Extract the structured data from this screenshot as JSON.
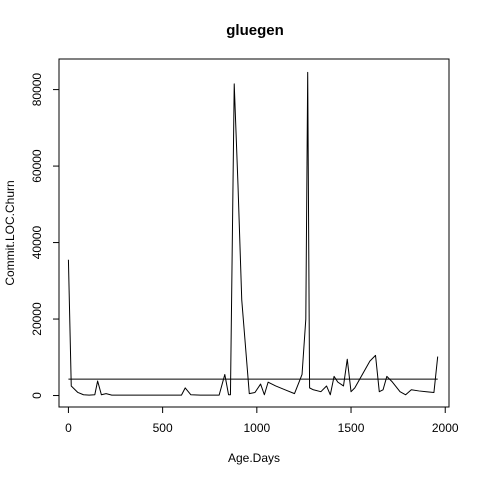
{
  "chart_data": {
    "type": "line",
    "title": "gluegen",
    "xlabel": "Age.Days",
    "ylabel": "Commit.LOC.Churn",
    "xlim": [
      -50,
      2020
    ],
    "ylim": [
      -3000,
      88000
    ],
    "x_ticks": [
      0,
      500,
      1000,
      1500,
      2000
    ],
    "x_tick_labels": [
      "0",
      "500",
      "1000",
      "1500",
      "2000"
    ],
    "y_ticks": [
      0,
      20000,
      40000,
      60000,
      80000
    ],
    "y_tick_labels": [
      "0",
      "20000",
      "40000",
      "60000",
      "80000"
    ],
    "grid": false,
    "series": [
      {
        "x": [
          0,
          15,
          50,
          80,
          110,
          140,
          155,
          175,
          200,
          230,
          260,
          300,
          350,
          400,
          450,
          500,
          550,
          600,
          620,
          650,
          700,
          750,
          800,
          830,
          850,
          860,
          880,
          900,
          920,
          960,
          990,
          1020,
          1040,
          1060,
          1100,
          1150,
          1200,
          1240,
          1260,
          1270,
          1280,
          1300,
          1340,
          1370,
          1390,
          1410,
          1430,
          1460,
          1480,
          1500,
          1520,
          1560,
          1600,
          1630,
          1650,
          1670,
          1690,
          1720,
          1760,
          1790,
          1820,
          1860,
          1900,
          1940,
          1960
        ],
        "y": [
          35500,
          2500,
          800,
          200,
          100,
          200,
          3800,
          200,
          500,
          100,
          100,
          100,
          100,
          100,
          100,
          100,
          100,
          100,
          2000,
          200,
          100,
          100,
          100,
          5500,
          200,
          200,
          81500,
          55000,
          25000,
          500,
          800,
          3000,
          200,
          3500,
          2500,
          1500,
          500,
          5500,
          20000,
          84500,
          2000,
          1500,
          1000,
          2500,
          200,
          5000,
          3500,
          2500,
          9500,
          1000,
          2000,
          5500,
          9000,
          10500,
          1000,
          1500,
          5000,
          3500,
          1000,
          200,
          1500,
          1200,
          1000,
          800,
          10200
        ]
      },
      {
        "x": [
          0,
          1960
        ],
        "y": [
          4300,
          4300
        ]
      }
    ]
  }
}
